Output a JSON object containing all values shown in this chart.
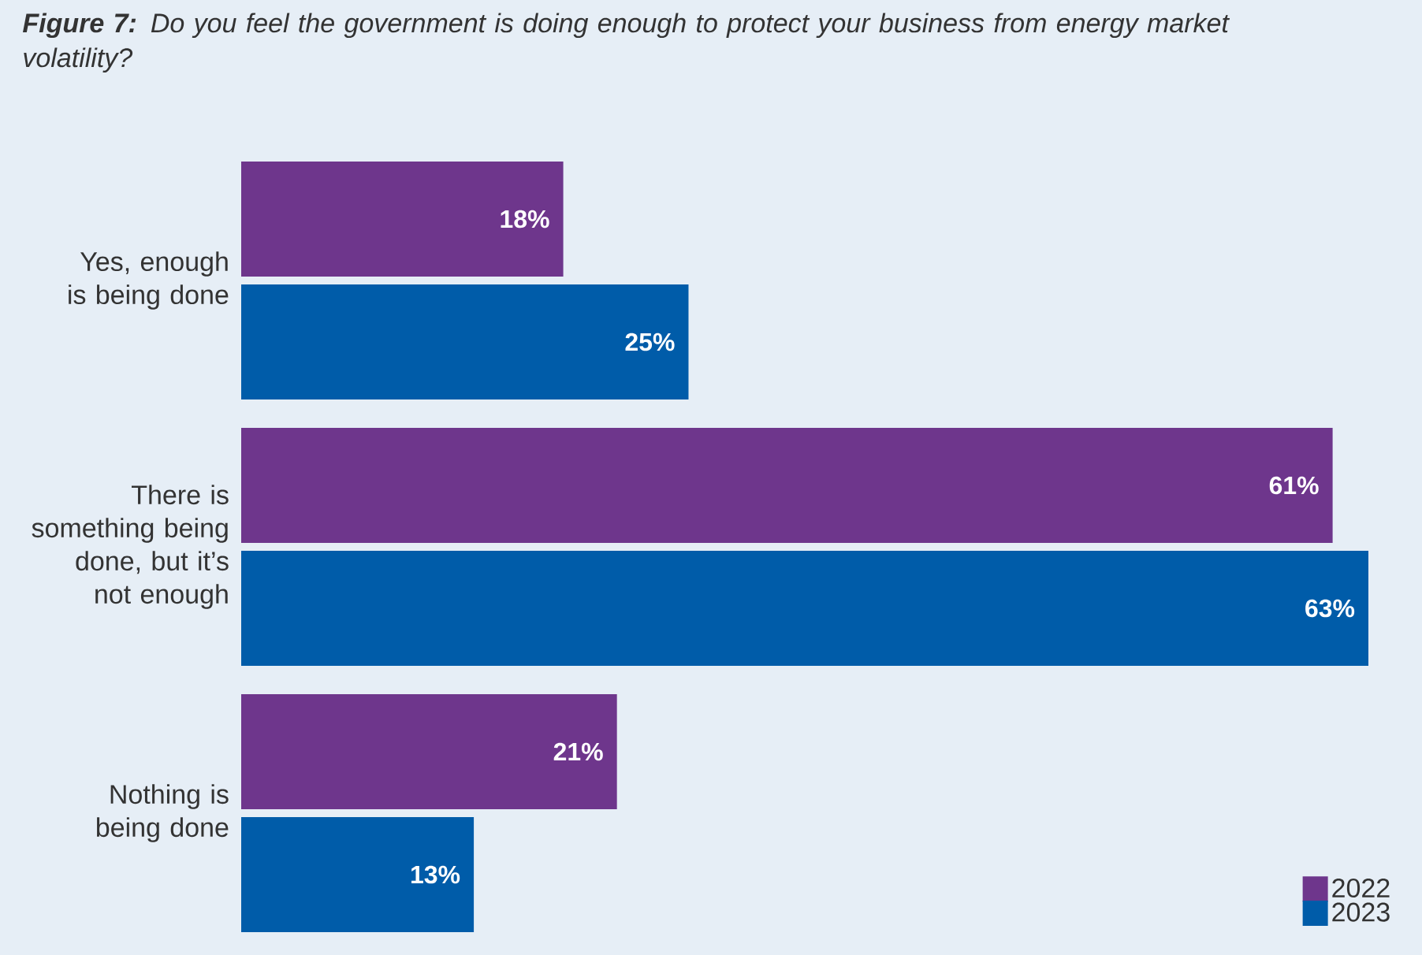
{
  "chart_data": {
    "type": "bar",
    "orientation": "horizontal",
    "title": "**Figure 7:** Do you feel the government is doing enough to protect your business from energy market volatility?",
    "categories": [
      "Yes, enough is being done",
      "There is something being done, but it’s not enough",
      "Nothing is being done"
    ],
    "series": [
      {
        "name": "2022",
        "color": "#6e368c",
        "values": [
          18,
          61,
          21
        ],
        "value_labels": [
          "18%",
          "61%",
          "21%"
        ]
      },
      {
        "name": "2023",
        "color": "#005ca9",
        "values": [
          25,
          63,
          13
        ],
        "value_labels": [
          "25%",
          "63%",
          "13%"
        ]
      }
    ],
    "legend": "bottom right",
    "tick_labels": "y"
  }
}
